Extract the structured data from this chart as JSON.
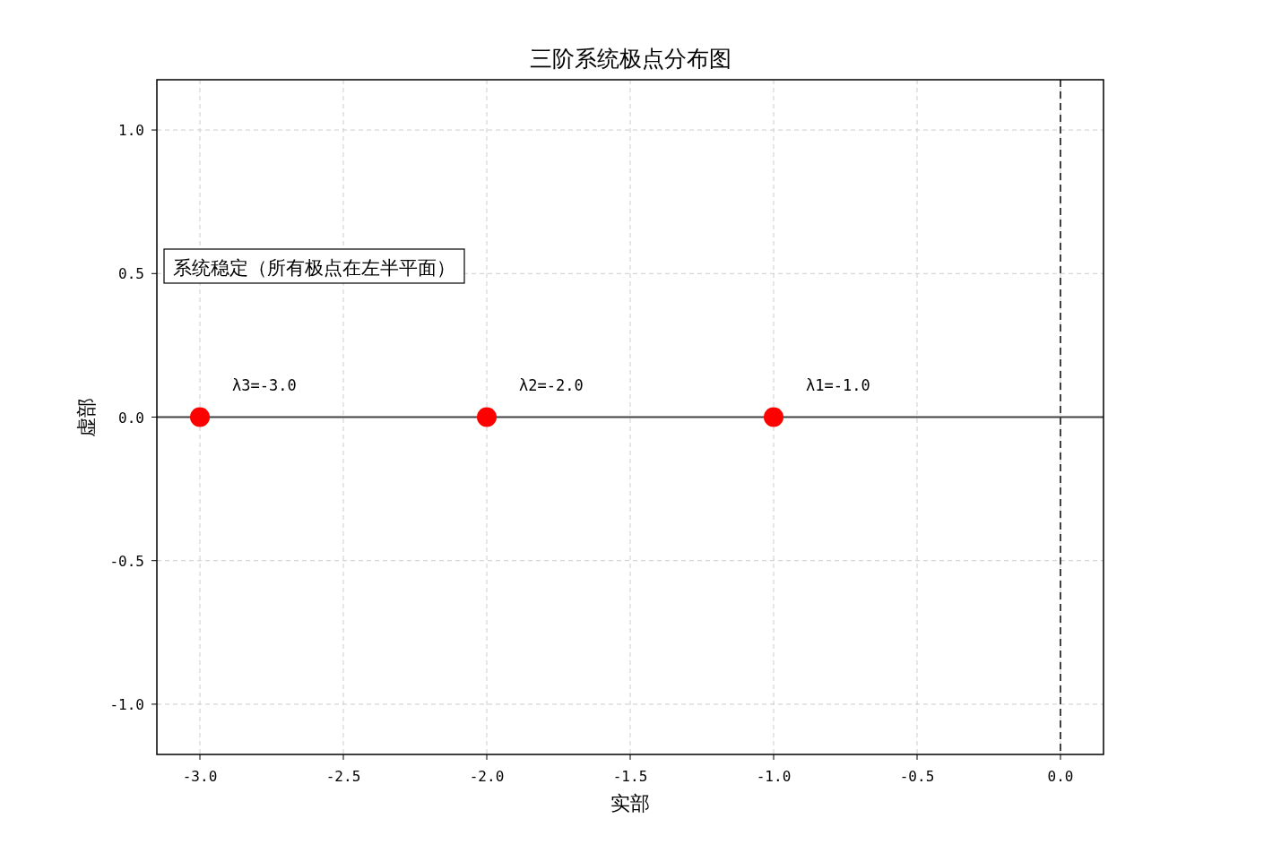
{
  "chart_data": {
    "type": "scatter",
    "title": "三阶系统极点分布图",
    "xlabel": "实部",
    "ylabel": "虚部",
    "x": [
      -3.0,
      -2.0,
      -1.0
    ],
    "series": [
      {
        "color": "#ff0000",
        "values": [
          0,
          0,
          0
        ]
      }
    ],
    "marker": "circle",
    "grid": true,
    "xlim": [
      -3.15,
      0.15
    ],
    "xticks": [
      {
        "value": -3,
        "label": "-3.0"
      },
      -2.5,
      {
        "value": -2,
        "label": "-2.0"
      },
      -1.5,
      {
        "value": -1,
        "label": "-1.0"
      },
      -0.5,
      {
        "value": 0,
        "label": "0.0"
      }
    ],
    "ylim": [
      -1.175,
      1.175
    ],
    "yticks": [
      {
        "value": -1,
        "label": "-1.0"
      },
      -0.5,
      {
        "value": 0,
        "label": "0.0"
      },
      0.5,
      {
        "value": 1,
        "label": "1.0"
      }
    ],
    "ref_lines": [
      {
        "axis": "y",
        "value": 0,
        "color": "#404040",
        "line_style": "solid"
      },
      {
        "axis": "x",
        "value": 0,
        "color": "#404040",
        "line_style": "dashed"
      }
    ],
    "annotations": [
      {
        "text": "λ1=-1.0",
        "x": -1.0,
        "y": 0
      },
      {
        "text": "λ2=-2.0",
        "x": -2.0,
        "y": 0
      },
      {
        "text": "λ3=-3.0",
        "x": -3.0,
        "y": 0
      },
      "系统稳定（所有极点在左半平面）"
    ]
  }
}
